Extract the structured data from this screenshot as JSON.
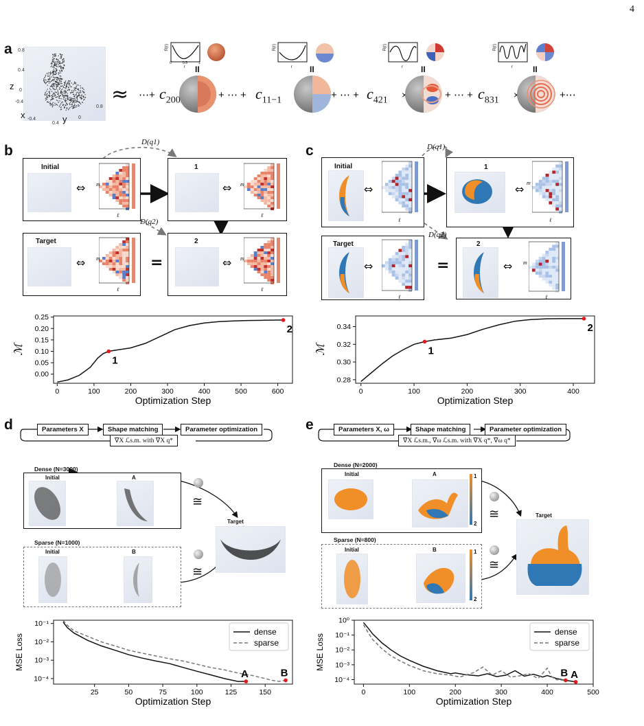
{
  "page_number": "4",
  "panel_labels": [
    "a",
    "b",
    "c",
    "d",
    "e"
  ],
  "panel_a": {
    "axis_labels": {
      "z": "z",
      "x": "x",
      "y": "y"
    },
    "axis_ticks": [
      "0.8",
      "0.4",
      "0",
      "-0.4",
      "-0.4",
      "0",
      "0.4",
      "-0.4",
      "0",
      "0.4",
      "0.8"
    ],
    "approx_symbol": "≈",
    "ellipsis": "⋯",
    "plus": "+",
    "times": "×",
    "equals": "II",
    "terms": [
      {
        "coef": "c",
        "sub": "200"
      },
      {
        "coef": "c",
        "sub": "11−1"
      },
      {
        "coef": "c",
        "sub": "421"
      },
      {
        "coef": "c",
        "sub": "831"
      }
    ],
    "radial_ylabel": "R(r)",
    "radial_xlabel": "r",
    "radial_xticks": [
      "0",
      "0.5",
      "1"
    ],
    "radial_yticks": [
      "1",
      "-1"
    ]
  },
  "panel_b": {
    "labels": {
      "initial": "Initial",
      "one": "1",
      "target": "Target",
      "two": "2"
    },
    "edge_labels": [
      "D(q1)",
      "D(q2)"
    ],
    "heatmap_axes": {
      "x": "ℓ",
      "y": "m"
    },
    "equiv": "⇔",
    "equals": "=",
    "chart_data": {
      "type": "line",
      "xlabel": "Optimization Step",
      "ylabel": "ℳ",
      "xlim": [
        -10,
        640
      ],
      "ylim": [
        -0.04,
        0.255
      ],
      "xticks": [
        0,
        100,
        200,
        300,
        400,
        500,
        600
      ],
      "yticks": [
        0.0,
        0.05,
        0.1,
        0.15,
        0.2,
        0.25
      ],
      "ytick_labels": [
        "0.00",
        "0.05",
        "0.10",
        "0.15",
        "0.20",
        "0.25"
      ],
      "series": [
        {
          "x": [
            0,
            30,
            60,
            90,
            110,
            125,
            140,
            160,
            200,
            240,
            280,
            320,
            360,
            400,
            440,
            480,
            520,
            560,
            600,
            615
          ],
          "y": [
            -0.035,
            -0.025,
            -0.005,
            0.03,
            0.07,
            0.09,
            0.1,
            0.105,
            0.115,
            0.135,
            0.165,
            0.195,
            0.213,
            0.224,
            0.23,
            0.233,
            0.235,
            0.236,
            0.237,
            0.237
          ]
        }
      ],
      "markers": [
        {
          "label": "1",
          "x": 140,
          "y": 0.1
        },
        {
          "label": "2",
          "x": 615,
          "y": 0.237
        }
      ]
    }
  },
  "panel_c": {
    "labels": {
      "initial": "Initial",
      "one": "1",
      "target": "Target",
      "two": "2"
    },
    "edge_labels": [
      "D(q1)",
      "D(q2)"
    ],
    "heatmap_axes": {
      "x": "ℓ",
      "y": "m"
    },
    "equiv": "⇔",
    "equals": "=",
    "chart_data": {
      "type": "line",
      "xlabel": "Optimization Step",
      "ylabel": "ℳ",
      "xlim": [
        -10,
        440
      ],
      "ylim": [
        0.276,
        0.352
      ],
      "xticks": [
        0,
        100,
        200,
        300,
        400
      ],
      "yticks": [
        0.28,
        0.3,
        0.32,
        0.34
      ],
      "ytick_labels": [
        "0.28",
        "0.30",
        "0.32",
        "0.34"
      ],
      "series": [
        {
          "x": [
            0,
            20,
            40,
            60,
            80,
            100,
            120,
            140,
            170,
            200,
            230,
            260,
            290,
            320,
            350,
            380,
            420
          ],
          "y": [
            0.278,
            0.288,
            0.298,
            0.307,
            0.314,
            0.32,
            0.323,
            0.325,
            0.327,
            0.331,
            0.337,
            0.342,
            0.346,
            0.348,
            0.3488,
            0.349,
            0.349
          ]
        }
      ],
      "markers": [
        {
          "label": "1",
          "x": 120,
          "y": 0.323
        },
        {
          "label": "2",
          "x": 420,
          "y": 0.349
        }
      ]
    }
  },
  "panel_d": {
    "flow": {
      "params": "Parameters X",
      "match": "Shape matching",
      "opt": "Parameter optimization",
      "grad": "∇X ℒs.m. with ∇X q*"
    },
    "dense_title": "Dense (N=3000)",
    "sparse_title": "Sparse (N=1000)",
    "labels": {
      "initial": "Initial",
      "A": "A",
      "B": "B",
      "target": "Target"
    },
    "cong": "≅",
    "chart_data": {
      "type": "line",
      "xlabel": "Optimization Step",
      "ylabel": "MSE Loss",
      "yscale": "log",
      "xlim": [
        -5,
        170
      ],
      "ylim": [
        5e-05,
        0.15
      ],
      "xticks": [
        25,
        50,
        75,
        100,
        125,
        150
      ],
      "ytick_labels": [
        "10⁻¹",
        "10⁻²",
        "10⁻³",
        "10⁻⁴"
      ],
      "yticks": [
        0.1,
        0.01,
        0.001,
        0.0001
      ],
      "legend": "top-right",
      "series": [
        {
          "name": "dense",
          "style": "solid",
          "x": [
            2,
            5,
            10,
            20,
            30,
            40,
            50,
            60,
            70,
            80,
            90,
            100,
            110,
            120,
            130,
            136
          ],
          "y": [
            0.12,
            0.06,
            0.03,
            0.012,
            0.006,
            0.0035,
            0.002,
            0.0013,
            0.0009,
            0.00065,
            0.0004,
            0.00025,
            0.00016,
            0.0001,
            7e-05,
            7e-05
          ]
        },
        {
          "name": "sparse",
          "style": "dashed",
          "x": [
            2,
            5,
            10,
            20,
            30,
            40,
            50,
            60,
            70,
            80,
            90,
            100,
            110,
            120,
            130,
            140,
            150,
            155,
            160,
            165
          ],
          "y": [
            0.15,
            0.08,
            0.04,
            0.02,
            0.01,
            0.006,
            0.0035,
            0.0024,
            0.0017,
            0.0012,
            0.0009,
            0.0006,
            0.0004,
            0.0003,
            0.0002,
            0.00015,
            0.0001,
            8e-05,
            7e-05,
            8e-05
          ]
        }
      ],
      "markers": [
        {
          "label": "A",
          "x": 136,
          "y": 7e-05
        },
        {
          "label": "B",
          "x": 165,
          "y": 8e-05
        }
      ]
    }
  },
  "panel_e": {
    "flow": {
      "params": "Parameters X, ω",
      "match": "Shape matching",
      "opt": "Parameter optimization",
      "grad": "∇X ℒs.m., ∇ω ℒs.m. with ∇X q*, ∇ω q*"
    },
    "dense_title": "Dense (N=2000)",
    "sparse_title": "Sparse (N=800)",
    "labels": {
      "initial": "Initial",
      "A": "A",
      "B": "B",
      "target": "Target"
    },
    "colorbar_ticks": [
      "1",
      "2"
    ],
    "cong": "≅",
    "chart_data": {
      "type": "line",
      "xlabel": "Optimization Step",
      "ylabel": "MSE Loss",
      "yscale": "log",
      "xlim": [
        -20,
        500
      ],
      "ylim": [
        5e-05,
        1
      ],
      "xticks": [
        0,
        100,
        200,
        300,
        400,
        500
      ],
      "ytick_labels": [
        "10⁰",
        "10⁻¹",
        "10⁻²",
        "10⁻³",
        "10⁻⁴"
      ],
      "yticks": [
        1,
        0.1,
        0.01,
        0.001,
        0.0001
      ],
      "legend": "top-right",
      "series": [
        {
          "name": "dense",
          "style": "solid",
          "x": [
            0,
            10,
            20,
            40,
            60,
            80,
            100,
            130,
            160,
            190,
            200,
            220,
            250,
            270,
            290,
            310,
            330,
            350,
            370,
            390,
            400,
            420,
            440,
            462
          ],
          "y": [
            0.7,
            0.3,
            0.12,
            0.03,
            0.01,
            0.004,
            0.002,
            0.0008,
            0.0004,
            0.00025,
            0.00028,
            0.00022,
            0.00018,
            0.00025,
            0.00016,
            0.0002,
            0.0004,
            0.00017,
            0.00023,
            0.00015,
            0.00019,
            0.00012,
            9e-05,
            7e-05
          ]
        },
        {
          "name": "sparse",
          "style": "dashed",
          "x": [
            0,
            10,
            20,
            40,
            60,
            80,
            100,
            130,
            160,
            190,
            210,
            240,
            260,
            280,
            300,
            320,
            340,
            360,
            380,
            400,
            410,
            420,
            440
          ],
          "y": [
            0.5,
            0.15,
            0.05,
            0.012,
            0.004,
            0.0018,
            0.0009,
            0.0004,
            0.00025,
            0.0002,
            0.00015,
            0.0003,
            0.0007,
            0.0002,
            0.0004,
            0.00015,
            0.00018,
            0.00025,
            0.00012,
            0.0006,
            0.00015,
            0.0001,
            9e-05
          ]
        }
      ],
      "markers": [
        {
          "label": "B",
          "x": 440,
          "y": 9e-05
        },
        {
          "label": "A",
          "x": 462,
          "y": 7e-05
        }
      ]
    }
  }
}
